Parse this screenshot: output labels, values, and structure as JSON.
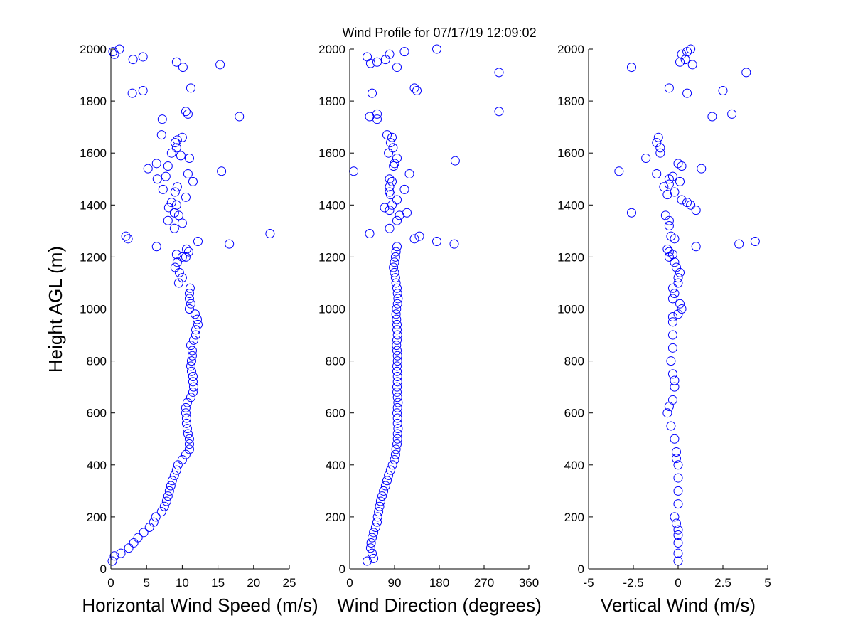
{
  "title": "Wind Profile for  07/17/19 12:09:02",
  "ylabel": "Height AGL (m)",
  "marker_color": "#0000ff",
  "chart_data": [
    {
      "type": "scatter",
      "xlabel": "Horizontal Wind Speed (m/s)",
      "xlim": [
        0,
        25
      ],
      "ylim": [
        0,
        2000
      ],
      "xticks": [
        0,
        5,
        10,
        15,
        20,
        25
      ],
      "xtick_labels": [
        "0",
        "5",
        "10",
        "15",
        "20",
        "25"
      ],
      "yticks": [
        0,
        200,
        400,
        600,
        800,
        1000,
        1200,
        1400,
        1600,
        1800,
        2000
      ],
      "ytick_labels": [
        "0",
        "200",
        "400",
        "600",
        "800",
        "1000",
        "1200",
        "1400",
        "1600",
        "1800",
        "2000"
      ],
      "grid": false,
      "x": [
        0.2,
        0.5,
        1.4,
        2.5,
        3.2,
        3.8,
        4.6,
        5.4,
        6,
        6.3,
        7.1,
        7.5,
        7.8,
        8,
        8.2,
        8.4,
        8.6,
        8.9,
        9.2,
        9.4,
        10,
        10.5,
        11,
        11,
        11,
        10.8,
        10.7,
        10.6,
        10.6,
        10.5,
        10.5,
        10.7,
        11.2,
        11.5,
        11.6,
        11.5,
        11.5,
        11.3,
        11.2,
        11.3,
        11.4,
        11.4,
        11.2,
        11.6,
        11.9,
        11.9,
        12.2,
        12.1,
        11.8,
        11,
        11.2,
        11,
        11,
        11.1,
        9.5,
        10,
        9.6,
        9,
        9.3,
        10.5,
        10.9,
        0.3,
        1.2,
        0.5,
        3.1,
        4.5,
        9.2,
        10.1,
        15.3,
        3,
        4.5,
        11.2,
        10.5,
        10.8,
        18,
        7.2,
        7.1,
        9,
        9.3,
        10,
        9.2,
        8.5,
        9.8,
        11,
        5.2,
        6.4,
        8,
        6.5,
        7.7,
        10.8,
        11.5,
        15.5,
        9.3,
        9,
        7.3,
        10.5,
        8.5,
        8.1,
        9.2,
        8.9,
        9.5,
        8,
        10,
        8.9,
        2.1,
        2.4,
        6.4,
        12.2,
        16.6,
        22.3,
        10.6,
        10,
        9.2
      ],
      "y": [
        30,
        50,
        60,
        80,
        100,
        120,
        140,
        160,
        180,
        200,
        220,
        240,
        260,
        280,
        300,
        320,
        340,
        360,
        380,
        400,
        420,
        440,
        460,
        480,
        500,
        520,
        540,
        560,
        580,
        600,
        620,
        640,
        660,
        680,
        700,
        720,
        740,
        760,
        780,
        800,
        820,
        840,
        860,
        880,
        900,
        920,
        940,
        960,
        980,
        1000,
        1020,
        1040,
        1060,
        1080,
        1100,
        1120,
        1140,
        1160,
        1180,
        1200,
        1220,
        1990,
        2000,
        1980,
        1960,
        1970,
        1950,
        1930,
        1940,
        1830,
        1840,
        1850,
        1760,
        1750,
        1740,
        1730,
        1670,
        1640,
        1650,
        1660,
        1620,
        1600,
        1590,
        1580,
        1540,
        1560,
        1550,
        1500,
        1510,
        1520,
        1490,
        1530,
        1470,
        1450,
        1460,
        1430,
        1410,
        1390,
        1400,
        1370,
        1360,
        1340,
        1330,
        1310,
        1280,
        1270,
        1240,
        1260,
        1250,
        1290,
        1230,
        1200,
        1210
      ]
    },
    {
      "type": "scatter",
      "xlabel": "Wind Direction (degrees)",
      "xlim": [
        0,
        360
      ],
      "ylim": [
        0,
        2000
      ],
      "xticks": [
        0,
        90,
        180,
        270,
        360
      ],
      "xtick_labels": [
        "0",
        "90",
        "180",
        "270",
        "360"
      ],
      "yticks": [
        0,
        200,
        400,
        600,
        800,
        1000,
        1200,
        1400,
        1600,
        1800,
        2000
      ],
      "ytick_labels": [
        "0",
        "200",
        "400",
        "600",
        "800",
        "1000",
        "1200",
        "1400",
        "1600",
        "1800",
        "2000"
      ],
      "grid": false,
      "x": [
        35,
        48,
        45,
        42,
        43,
        45,
        48,
        52,
        55,
        56,
        58,
        60,
        62,
        65,
        68,
        72,
        75,
        78,
        82,
        86,
        90,
        92,
        93,
        95,
        96,
        96,
        97,
        96,
        96,
        95,
        96,
        97,
        96,
        95,
        95,
        96,
        96,
        95,
        95,
        96,
        96,
        95,
        94,
        95,
        96,
        95,
        95,
        94,
        93,
        94,
        96,
        97,
        96,
        95,
        93,
        92,
        90,
        88,
        90,
        92,
        93,
        95,
        35,
        42,
        55,
        80,
        72,
        110,
        175,
        95,
        300,
        45,
        130,
        135,
        300,
        40,
        55,
        55,
        75,
        85,
        82,
        87,
        78,
        95,
        90,
        88,
        8,
        120,
        212,
        80,
        85,
        110,
        80,
        80,
        82,
        95,
        85,
        70,
        80,
        100,
        115,
        95,
        80,
        40,
        130,
        140,
        175,
        210
      ],
      "y": [
        30,
        40,
        60,
        80,
        100,
        120,
        140,
        160,
        180,
        200,
        220,
        240,
        260,
        280,
        300,
        320,
        340,
        360,
        380,
        400,
        420,
        440,
        460,
        480,
        500,
        520,
        540,
        560,
        580,
        600,
        620,
        640,
        660,
        680,
        700,
        720,
        740,
        760,
        780,
        800,
        820,
        840,
        860,
        880,
        900,
        920,
        940,
        960,
        980,
        1000,
        1020,
        1040,
        1060,
        1080,
        1100,
        1120,
        1140,
        1160,
        1180,
        1200,
        1220,
        1240,
        1970,
        1945,
        1950,
        1980,
        1960,
        1990,
        2000,
        1930,
        1910,
        1830,
        1850,
        1840,
        1760,
        1740,
        1730,
        1750,
        1670,
        1660,
        1640,
        1620,
        1600,
        1580,
        1560,
        1550,
        1530,
        1520,
        1570,
        1500,
        1490,
        1460,
        1470,
        1450,
        1440,
        1420,
        1400,
        1390,
        1380,
        1360,
        1370,
        1340,
        1310,
        1290,
        1270,
        1280,
        1260,
        1250
      ]
    },
    {
      "type": "scatter",
      "xlabel": "Vertical Wind (m/s)",
      "xlim": [
        -5,
        5
      ],
      "ylim": [
        0,
        2000
      ],
      "xticks": [
        -5,
        -2.5,
        0,
        2.5,
        5
      ],
      "xtick_labels": [
        "-5",
        "-2.5",
        "0",
        "2.5",
        "5"
      ],
      "yticks": [
        0,
        200,
        400,
        600,
        800,
        1000,
        1200,
        1400,
        1600,
        1800,
        2000
      ],
      "ytick_labels": [
        "0",
        "200",
        "400",
        "600",
        "800",
        "1000",
        "1200",
        "1400",
        "1600",
        "1800",
        "2000"
      ],
      "grid": false,
      "x": [
        0,
        0,
        0,
        0,
        0,
        -0.1,
        -0.2,
        0,
        0,
        0,
        0,
        -0.1,
        -0.1,
        -0.2,
        -0.4,
        -0.6,
        -0.5,
        -0.3,
        -0.2,
        -0.2,
        -0.3,
        -0.4,
        -0.3,
        -0.3,
        -0.3,
        -0.3,
        0,
        0.2,
        0.1,
        -0.3,
        -0.2,
        -0.3,
        0,
        0,
        0.1,
        -0.1,
        -0.2,
        -0.5,
        -0.5,
        0.5,
        0.7,
        0.2,
        0.4,
        0.1,
        0.8,
        -2.6,
        3.8,
        -0.5,
        0.5,
        2.5,
        3,
        1.9,
        -1.2,
        -1.1,
        -1,
        -1,
        -1.8,
        0,
        0.2,
        -3.3,
        -1.2,
        1.3,
        -0.5,
        -0.3,
        0.1,
        -0.8,
        -0.5,
        -0.6,
        -0.2,
        0.5,
        0.7,
        1,
        0.2,
        -2.6,
        -0.7,
        -0.5,
        -0.5,
        -0.4,
        -0.2,
        1,
        3.4,
        4.3,
        -0.6,
        -0.3
      ],
      "y": [
        30,
        60,
        100,
        130,
        150,
        175,
        200,
        250,
        300,
        350,
        400,
        425,
        450,
        500,
        550,
        600,
        625,
        650,
        700,
        725,
        750,
        800,
        850,
        900,
        950,
        970,
        980,
        1000,
        1020,
        1040,
        1060,
        1080,
        1100,
        1120,
        1140,
        1160,
        1180,
        1200,
        1220,
        1990,
        2000,
        1980,
        1960,
        1950,
        1940,
        1930,
        1910,
        1850,
        1830,
        1840,
        1750,
        1740,
        1640,
        1660,
        1620,
        1600,
        1580,
        1560,
        1550,
        1530,
        1520,
        1540,
        1500,
        1510,
        1490,
        1470,
        1480,
        1440,
        1450,
        1410,
        1400,
        1380,
        1420,
        1370,
        1360,
        1340,
        1320,
        1280,
        1270,
        1240,
        1250,
        1260,
        1230,
        1210
      ]
    }
  ]
}
